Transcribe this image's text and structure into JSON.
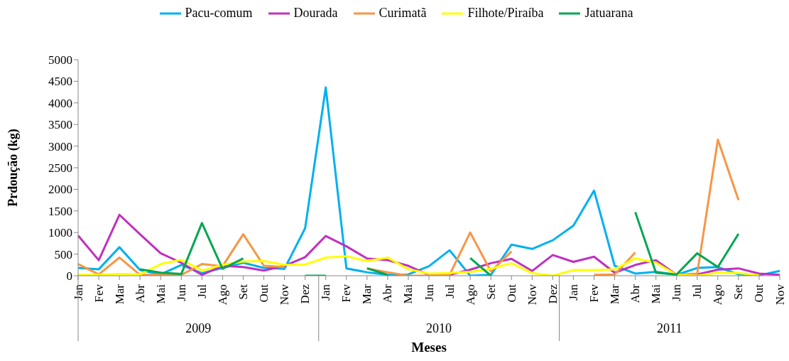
{
  "chart_data": {
    "type": "line",
    "xlabel": "Meses",
    "ylabel": "Prdoução (kg)",
    "categories": [
      "Jan",
      "Fev",
      "Mar",
      "Abr",
      "Mai",
      "Jun",
      "Jul",
      "Ago",
      "Set",
      "Out",
      "Nov",
      "Dez",
      "Jan",
      "Fev",
      "Mar",
      "Abr",
      "Mai",
      "Jun",
      "Jul",
      "Ago",
      "Set",
      "Out",
      "Nov",
      "Dez",
      "Jan",
      "Fev",
      "Mar",
      "Abr",
      "Mai",
      "Jun",
      "Jul",
      "Ago",
      "Set",
      "Out",
      "Nov"
    ],
    "annotations": [
      "2009",
      "2010",
      "2011"
    ],
    "series": [
      {
        "name": "Pacu-comum",
        "color": "#00b0f0",
        "values": [
          180,
          150,
          660,
          130,
          30,
          250,
          60,
          180,
          300,
          180,
          160,
          1100,
          4360,
          170,
          80,
          20,
          30,
          220,
          590,
          0,
          20,
          720,
          620,
          820,
          1160,
          1970,
          230,
          50,
          90,
          20,
          180,
          200,
          30,
          10,
          110
        ]
      },
      {
        "name": "Dourada",
        "color": "#c030c0",
        "values": [
          930,
          360,
          1410,
          960,
          520,
          300,
          20,
          230,
          200,
          120,
          230,
          430,
          920,
          680,
          400,
          360,
          230,
          20,
          20,
          140,
          290,
          390,
          110,
          480,
          320,
          440,
          70,
          250,
          360,
          20,
          30,
          140,
          170,
          50,
          20
        ]
      },
      {
        "name": "Curimatã",
        "color": "#f79646",
        "values": [
          270,
          30,
          420,
          20,
          20,
          20,
          270,
          220,
          960,
          230,
          200,
          null,
          null,
          null,
          170,
          80,
          0,
          0,
          20,
          1000,
          100,
          560,
          null,
          null,
          null,
          20,
          30,
          540,
          null,
          20,
          50,
          3150,
          1750,
          null,
          null
        ]
      },
      {
        "name": "Filhote/Piraíba",
        "color": "#ffff00",
        "values": [
          20,
          20,
          40,
          30,
          270,
          370,
          120,
          250,
          330,
          340,
          250,
          260,
          420,
          450,
          340,
          420,
          150,
          50,
          60,
          90,
          160,
          290,
          60,
          0,
          130,
          130,
          150,
          400,
          300,
          20,
          0,
          70,
          60,
          10,
          null
        ]
      },
      {
        "name": "Jatuarana",
        "color": "#00a650",
        "values": [
          null,
          null,
          null,
          150,
          70,
          40,
          1220,
          160,
          400,
          null,
          null,
          0,
          0,
          null,
          170,
          20,
          null,
          null,
          null,
          410,
          0,
          null,
          null,
          null,
          null,
          null,
          null,
          1470,
          70,
          30,
          520,
          200,
          970,
          null,
          null
        ]
      }
    ],
    "ylim": [
      0,
      5000
    ],
    "yticks": [
      0,
      500,
      1000,
      1500,
      2000,
      2500,
      3000,
      3500,
      4000,
      4500,
      5000
    ],
    "legend": "top",
    "marker": "none",
    "line_style": "solid"
  }
}
